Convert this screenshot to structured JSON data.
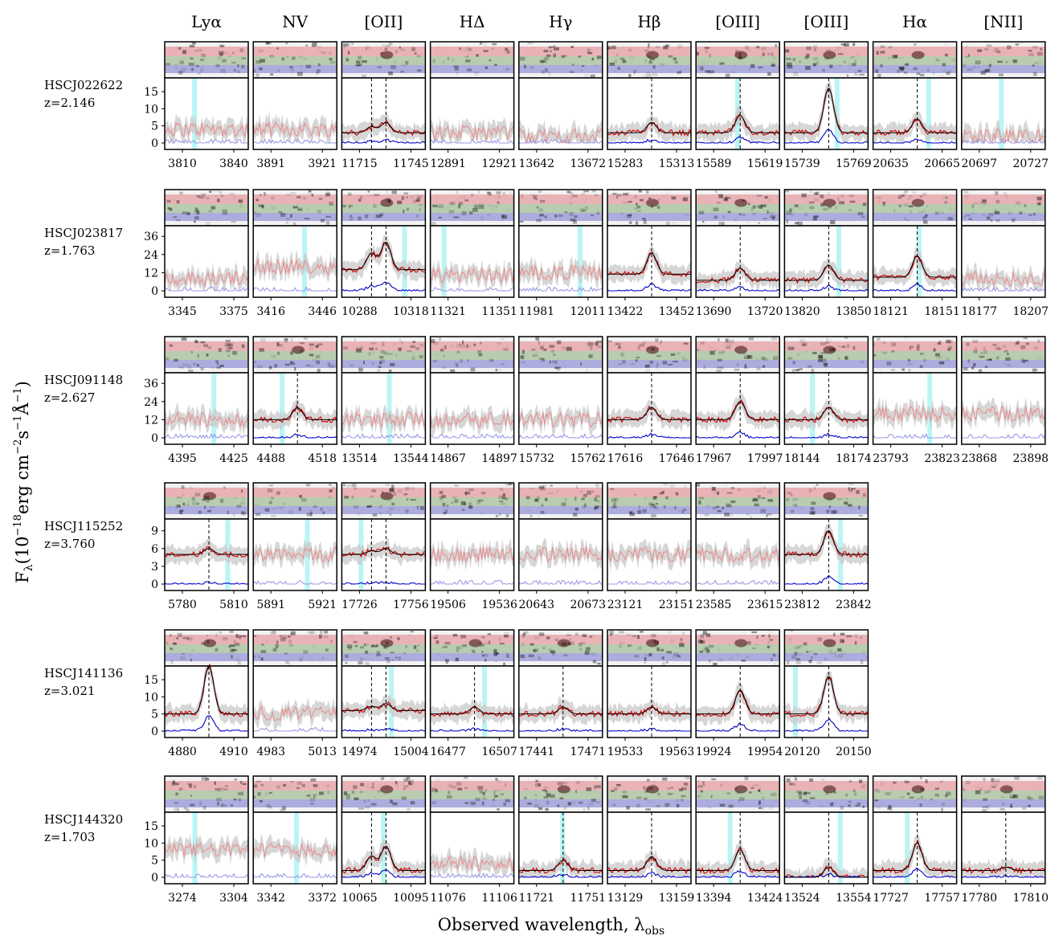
{
  "figure": {
    "xlabel": "Observed wavelength, λ",
    "xlabel_sub": "obs",
    "ylabel": "F",
    "ylabel_sub": "λ",
    "ylabel_rest": "(10",
    "ylabel_exp1": "−18",
    "ylabel_mid1": "erg cm",
    "ylabel_exp2": "−2",
    "ylabel_mid2": "s",
    "ylabel_exp3": "−1",
    "ylabel_mid3": "Å",
    "ylabel_exp4": "−1",
    "ylabel_end": ")"
  },
  "columns": [
    "Lyα",
    "NV",
    "[OII]",
    "HΔ",
    "Hγ",
    "Hβ",
    "[OIII]",
    "[OIII]",
    "Hα",
    "[NII]"
  ],
  "colors": {
    "observed": "#d40000",
    "observed_faint": "#e89090",
    "fit_blue": "#0000cc",
    "fit_blue_faint": "#9a9ae6",
    "model": "#000000",
    "error_band": "#c8c8c8",
    "sky": "#66e8ec",
    "twod_red": "#e6a3a6",
    "twod_green": "#a9c29d",
    "twod_blue": "#9a9ad8"
  },
  "chart_data": [
    {
      "name": "HSCJ022622",
      "z": "z=2.146",
      "yticks": [
        "15",
        "10",
        "5",
        "0"
      ],
      "ymax": 19,
      "xticks": [
        [
          "3810",
          "3840"
        ],
        [
          "3891",
          "3921"
        ],
        [
          "11715",
          "11745"
        ],
        [
          "12891",
          "12921"
        ],
        [
          "13642",
          "13672"
        ],
        [
          "15283",
          "15313"
        ],
        [
          "15589",
          "15619"
        ],
        [
          "15739",
          "15769"
        ],
        [
          "20635",
          "20665"
        ],
        [
          "20697",
          "20727"
        ]
      ],
      "lines": [
        0,
        0,
        2,
        0,
        0,
        1,
        1,
        1,
        1,
        0
      ],
      "peak": [
        0,
        0,
        3,
        0,
        0,
        3,
        5,
        13,
        4,
        0
      ],
      "base": [
        4,
        4,
        3,
        3,
        2,
        3,
        3,
        3,
        3,
        2
      ]
    },
    {
      "name": "HSCJ023817",
      "z": "z=1.763",
      "yticks": [
        "36",
        "24",
        "12",
        "0"
      ],
      "ymax": 43,
      "xticks": [
        [
          "3345",
          "3375"
        ],
        [
          "3416",
          "3446"
        ],
        [
          "10288",
          "10318"
        ],
        [
          "11321",
          "11351"
        ],
        [
          "11981",
          "12011"
        ],
        [
          "13422",
          "13452"
        ],
        [
          "13690",
          "13720"
        ],
        [
          "13820",
          "13850"
        ],
        [
          "18121",
          "18151"
        ],
        [
          "18177",
          "18207"
        ]
      ],
      "lines": [
        0,
        0,
        2,
        0,
        0,
        1,
        1,
        1,
        1,
        0
      ],
      "peak": [
        0,
        0,
        18,
        0,
        0,
        14,
        8,
        10,
        14,
        0
      ],
      "base": [
        8,
        16,
        14,
        10,
        12,
        11,
        7,
        7,
        9,
        8
      ]
    },
    {
      "name": "HSCJ091148",
      "z": "z=2.627",
      "yticks": [
        "36",
        "24",
        "12",
        "0"
      ],
      "ymax": 43,
      "xticks": [
        [
          "4395",
          "4425"
        ],
        [
          "4488",
          "4518"
        ],
        [
          "13514",
          "13544"
        ],
        [
          "14867",
          "14897"
        ],
        [
          "15732",
          "15762"
        ],
        [
          "17616",
          "17646"
        ],
        [
          "17967",
          "17997"
        ],
        [
          "18144",
          "18174"
        ],
        [
          "23793",
          "23823"
        ],
        [
          "23868",
          "23898"
        ]
      ],
      "lines": [
        0,
        1,
        0,
        0,
        0,
        1,
        1,
        1,
        0,
        0
      ],
      "peak": [
        0,
        8,
        0,
        0,
        0,
        8,
        12,
        8,
        0,
        0
      ],
      "base": [
        12,
        12,
        12,
        12,
        12,
        12,
        12,
        12,
        16,
        16
      ]
    },
    {
      "name": "HSCJ115252",
      "z": "z=3.760",
      "yticks": [
        "9",
        "6",
        "3",
        "0"
      ],
      "ymax": 11,
      "xticks": [
        [
          "5780",
          "5810"
        ],
        [
          "5891",
          "5921"
        ],
        [
          "17726",
          "17756"
        ],
        [
          "19506",
          "19536"
        ],
        [
          "20643",
          "20673"
        ],
        [
          "23121",
          "23151"
        ],
        [
          "23585",
          "23615"
        ],
        [
          "23812",
          "23842"
        ]
      ],
      "lines": [
        1,
        0,
        2,
        0,
        0,
        0,
        0,
        1
      ],
      "peak": [
        1,
        0,
        1,
        0,
        0,
        0,
        0,
        4
      ],
      "base": [
        5,
        5,
        5,
        5,
        5,
        5,
        5,
        5
      ]
    },
    {
      "name": "HSCJ141136",
      "z": "z=3.021",
      "yticks": [
        "15",
        "10",
        "5",
        "0"
      ],
      "ymax": 19,
      "xticks": [
        [
          "4880",
          "4910"
        ],
        [
          "4983",
          "5013"
        ],
        [
          "14974",
          "15004"
        ],
        [
          "16477",
          "16507"
        ],
        [
          "17441",
          "17471"
        ],
        [
          "19533",
          "19563"
        ],
        [
          "19924",
          "19954"
        ],
        [
          "20120",
          "20150"
        ]
      ],
      "lines": [
        1,
        0,
        2,
        1,
        1,
        1,
        1,
        1
      ],
      "peak": [
        14,
        0,
        2,
        2,
        2,
        2,
        7,
        11
      ],
      "base": [
        5,
        5,
        6,
        5,
        5,
        5,
        5,
        5
      ]
    },
    {
      "name": "HSCJ144320",
      "z": "z=1.703",
      "yticks": [
        "15",
        "10",
        "5",
        "0"
      ],
      "ymax": 19,
      "xticks": [
        [
          "3274",
          "3304"
        ],
        [
          "3342",
          "3372"
        ],
        [
          "10065",
          "10095"
        ],
        [
          "11076",
          "11106"
        ],
        [
          "11721",
          "11751"
        ],
        [
          "13129",
          "13159"
        ],
        [
          "13394",
          "13424"
        ],
        [
          "13524",
          "13554"
        ],
        [
          "17727",
          "17757"
        ],
        [
          "17780",
          "17810"
        ]
      ],
      "lines": [
        0,
        0,
        2,
        0,
        1,
        1,
        1,
        1,
        1,
        1
      ],
      "peak": [
        0,
        0,
        7,
        0,
        3,
        4,
        6,
        3,
        8,
        1
      ],
      "base": [
        8,
        8,
        2,
        4,
        2,
        2,
        2,
        0,
        2,
        2
      ]
    }
  ]
}
